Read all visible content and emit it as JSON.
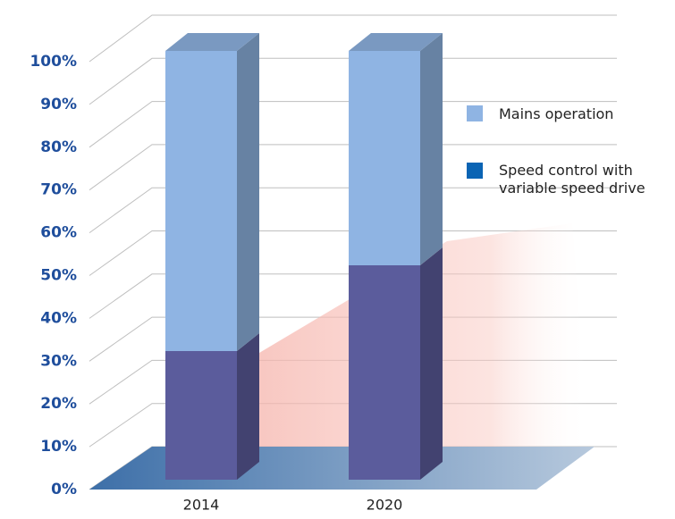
{
  "chart_data": {
    "type": "bar",
    "stacked": true,
    "three_d": true,
    "categories": [
      "2014",
      "2020"
    ],
    "series": [
      {
        "name": "Mains operation",
        "color": "#8fb4e3",
        "values": [
          70,
          50
        ]
      },
      {
        "name": "Speed control with variable speed drive",
        "color": "#5b5c9c",
        "values": [
          30,
          50
        ]
      }
    ],
    "ylim": [
      0,
      100
    ],
    "yticks": [
      {
        "value": 0,
        "label": "0%"
      },
      {
        "value": 10,
        "label": "10%"
      },
      {
        "value": 20,
        "label": "20%"
      },
      {
        "value": 30,
        "label": "30%"
      },
      {
        "value": 40,
        "label": "40%"
      },
      {
        "value": 50,
        "label": "50%"
      },
      {
        "value": 60,
        "label": "60%"
      },
      {
        "value": 70,
        "label": "70%"
      },
      {
        "value": 80,
        "label": "80%"
      },
      {
        "value": 90,
        "label": "90%"
      },
      {
        "value": 100,
        "label": "100%"
      }
    ],
    "grid": true
  }
}
